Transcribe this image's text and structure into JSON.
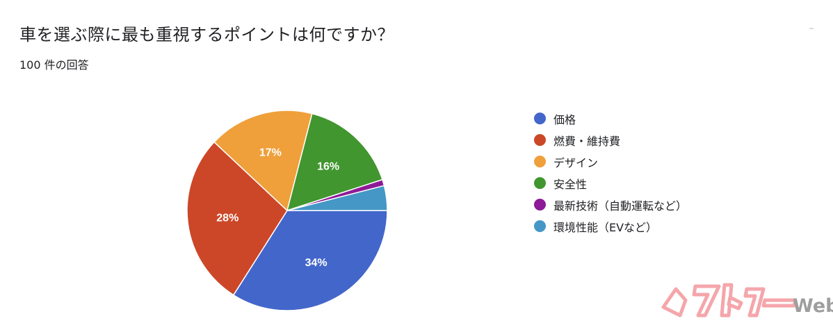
{
  "header": {
    "title": "車を選ぶ際に最も重視するポイントは何ですか？",
    "response_count": "100 件の回答"
  },
  "chart_data": {
    "type": "pie",
    "start_angle_deg": 90,
    "direction": "clockwise",
    "slices": [
      {
        "label": "価格",
        "value": 34,
        "display": "34%",
        "color": "#4266c9"
      },
      {
        "label": "燃費・維持費",
        "value": 28,
        "display": "28%",
        "color": "#cc4727"
      },
      {
        "label": "デザイン",
        "value": 17,
        "display": "17%",
        "color": "#f0a03a"
      },
      {
        "label": "安全性",
        "value": 16,
        "display": "16%",
        "color": "#41962f"
      },
      {
        "label": "最新技術（自動運転など）",
        "value": 1,
        "display": "",
        "color": "#8e1a97"
      },
      {
        "label": "環境性能（EVなど）",
        "value": 4,
        "display": "",
        "color": "#4597c6"
      }
    ],
    "legend_position": "right"
  },
  "watermark": {
    "logo_text": "ベストカー",
    "web_text": "Web",
    "logo_color": "#f4a6aa",
    "web_color": "#9e9e9e"
  }
}
